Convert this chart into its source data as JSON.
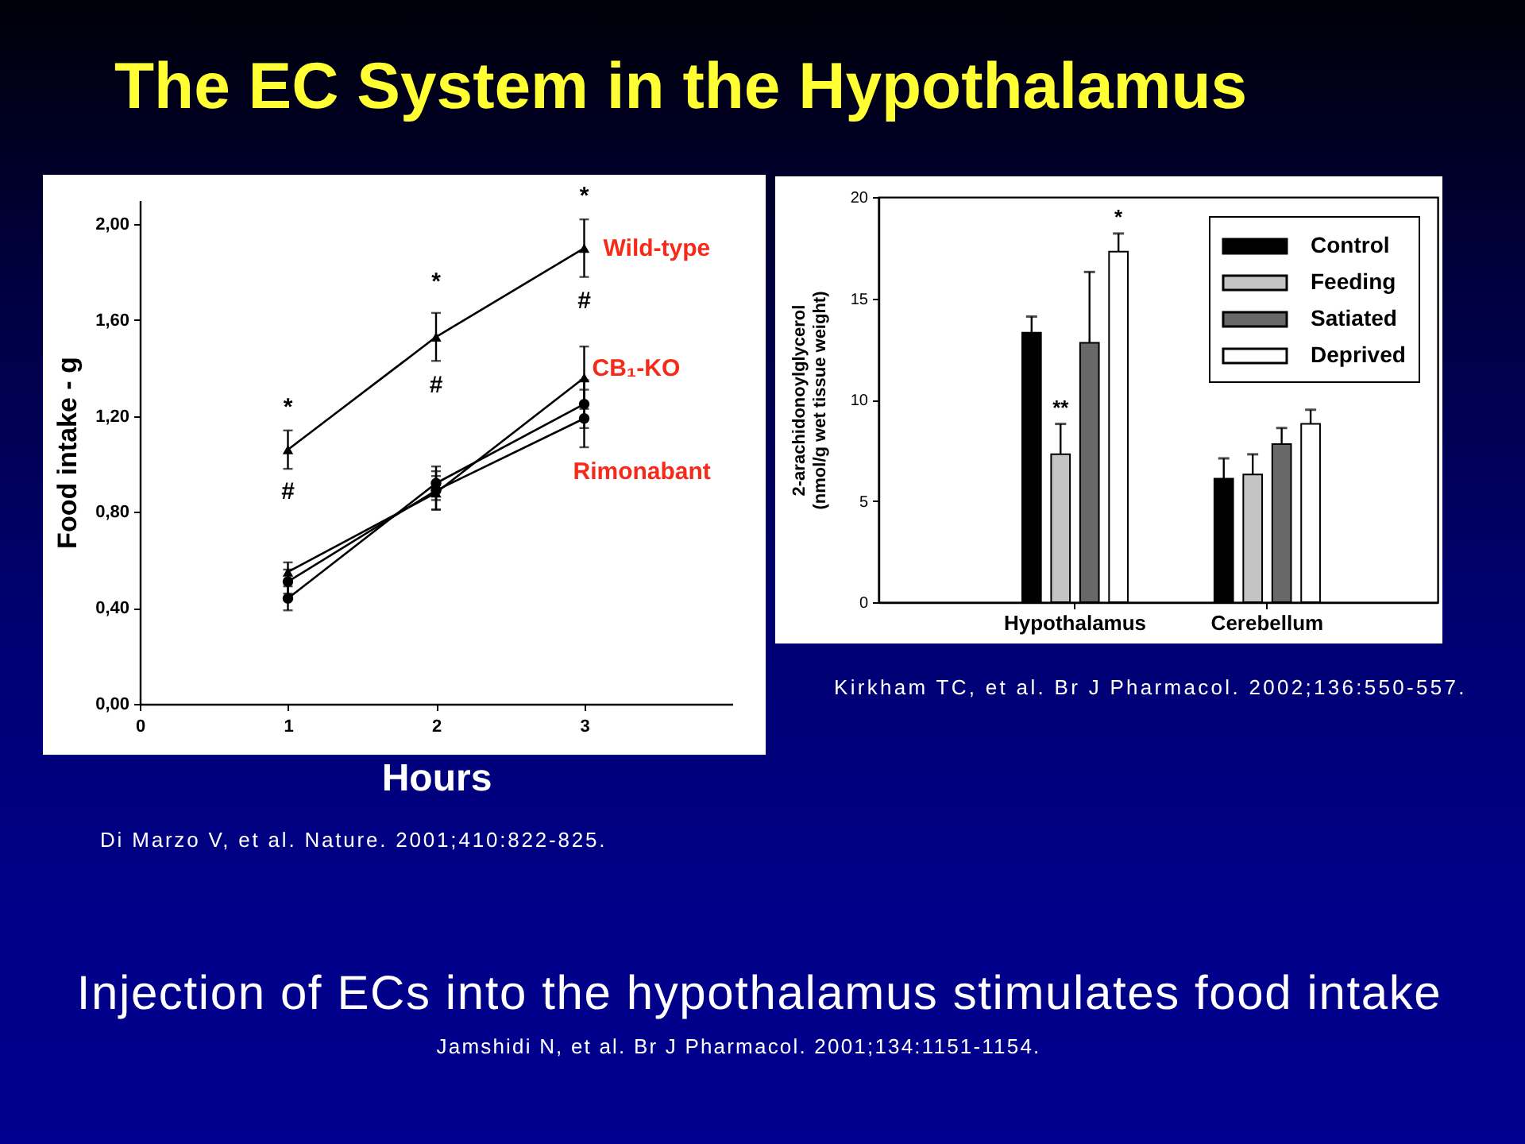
{
  "chart_data": [
    {
      "type": "line",
      "title": "The EC System in the Hypothalamus",
      "xlabel": "Hours",
      "ylabel": "Food intake - g",
      "x": [
        1,
        2,
        3
      ],
      "series": [
        {
          "name": "Wild-type",
          "color": "#000000",
          "marker": "triangle",
          "values": [
            1.06,
            1.53,
            1.9
          ],
          "errors": [
            0.08,
            0.1,
            0.12
          ]
        },
        {
          "name": "CB₁-KO",
          "color": "#000000",
          "marker": "triangle",
          "values": [
            0.55,
            0.88,
            1.36
          ],
          "errors": [
            0.04,
            0.07,
            0.13
          ]
        },
        {
          "color": "#000000",
          "marker": "circle",
          "values": [
            0.44,
            0.92,
            1.25
          ],
          "errors": [
            0.05,
            0.07,
            0.1
          ]
        },
        {
          "name": "Rimonabant",
          "color": "#000000",
          "marker": "circle",
          "values": [
            0.51,
            0.89,
            1.19
          ],
          "errors": [
            0.05,
            0.08,
            0.12
          ]
        }
      ],
      "xlim": [
        0,
        4
      ],
      "xticks": [
        0,
        1,
        2,
        3
      ],
      "ylim": [
        0,
        2.1
      ],
      "yticks": [
        {
          "value": 0,
          "label": "0,00"
        },
        {
          "value": 0.4,
          "label": "0,40"
        },
        {
          "value": 0.8,
          "label": "0,80"
        },
        {
          "value": 1.2,
          "label": "1,20"
        },
        {
          "value": 1.6,
          "label": "1,60"
        },
        {
          "value": 2,
          "label": "2,00"
        }
      ],
      "annotations": [
        {
          "text": "*",
          "x": 1,
          "y": 1.06
        },
        {
          "text": "*",
          "x": 2,
          "y": 1.53
        },
        {
          "text": "*",
          "x": 3,
          "y": 1.9
        },
        {
          "text": "#",
          "x": 1,
          "y": 1.06
        },
        {
          "text": "#",
          "x": 2,
          "y": 1.53
        },
        {
          "text": "#",
          "x": 3,
          "y": 1.9
        },
        "Di Marzo V, et al. Nature. 2001;410:822-825."
      ]
    },
    {
      "type": "bar",
      "ylabel": "2-arachidonoylglycerol (nmol/g wet tissue weight)",
      "categories": [
        "Hypothalamus",
        "Cerebellum"
      ],
      "series": [
        {
          "name": "Control",
          "color": "#000000",
          "values": [
            13.3,
            6.1
          ],
          "errors": [
            [
              13.3,
              14.1
            ],
            [
              6.1,
              7.1
            ]
          ]
        },
        {
          "name": "Feeding",
          "color": "#c4c4c4",
          "values": [
            7.3,
            6.3
          ],
          "errors": [
            [
              7.3,
              8.8
            ],
            [
              6.3,
              7.3
            ]
          ],
          "value_labels": [
            "**",
            null
          ]
        },
        {
          "name": "Satiated",
          "color": "#686868",
          "values": [
            12.8,
            7.8
          ],
          "errors": [
            [
              12.8,
              16.3
            ],
            [
              7.8,
              8.6
            ]
          ]
        },
        {
          "name": "Deprived",
          "color": "#ffffff",
          "values": [
            17.3,
            8.8
          ],
          "errors": [
            [
              17.3,
              18.2
            ],
            [
              8.8,
              9.5
            ]
          ],
          "value_labels": [
            "*",
            null
          ]
        }
      ],
      "ylim": [
        0,
        20
      ],
      "yticks": [
        0,
        5,
        10,
        15,
        20
      ],
      "legend": "top right",
      "annotations": [
        "Kirkham TC, et al. Br J Pharmacol. 2002;136:550-557.",
        "Injection of ECs into the hypothalamus stimulates food intake",
        "Jamshidi N, et al. Br J Pharmacol. 2001;134:1151-1154."
      ]
    }
  ]
}
